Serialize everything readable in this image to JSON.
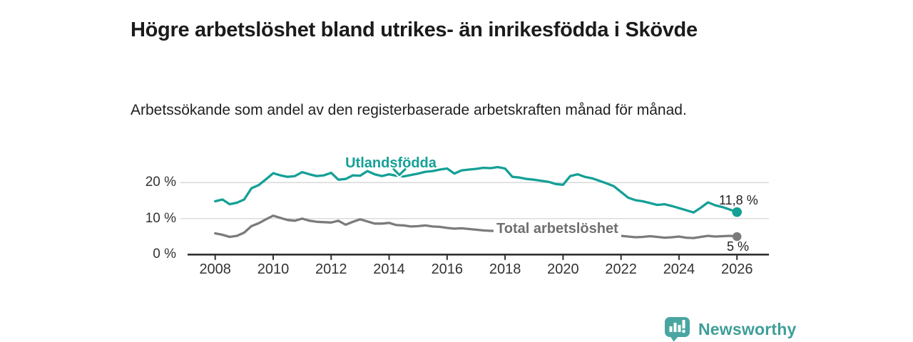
{
  "title": "Högre arbetslöshet bland utrikes- än inrikesfödda i Skövde",
  "subtitle": "Arbetssökande som andel av den registerbaserade arbetskraften månad för månad.",
  "branding": {
    "logo_text": "Newsworthy",
    "logo_icon": "bar-chart-speech-bubble-icon",
    "logo_color": "#3f9e99"
  },
  "colors": {
    "accent_teal": "#14a096",
    "line_gray": "#7b7b7b",
    "axis": "#303030",
    "gridline": "#d8d8d8",
    "text_dark": "#1b1b1b"
  },
  "chart_data": {
    "type": "line",
    "title": "Högre arbetslöshet bland utrikes- än inrikesfödda i Skövde",
    "xlabel": "",
    "ylabel": "",
    "x_unit": "year (monthly series)",
    "y_unit": "%",
    "x_start": 2008,
    "x_step": 0.25,
    "xlim": [
      2007.9,
      2027.1
    ],
    "ylim": [
      0,
      26
    ],
    "grid": "horizontal",
    "legend_position": "inline-labels",
    "x_ticks": [
      "2008",
      "2010",
      "2012",
      "2014",
      "2016",
      "2018",
      "2020",
      "2022",
      "2024",
      "2026"
    ],
    "y_ticks": [
      {
        "value": 0,
        "label": "0 %"
      },
      {
        "value": 10,
        "label": "10 %"
      },
      {
        "value": 20,
        "label": "20 %"
      }
    ],
    "series": [
      {
        "name": "Utlandsfödda",
        "color": "#14a096",
        "end_label": "11,8 %",
        "end_value": 11.8,
        "values": [
          14.8,
          15.3,
          14.0,
          14.4,
          15.3,
          18.4,
          19.3,
          20.9,
          22.6,
          22.0,
          21.6,
          21.8,
          22.9,
          22.3,
          21.8,
          22.0,
          22.7,
          20.8,
          21.0,
          22.0,
          21.9,
          23.2,
          22.3,
          21.8,
          22.3,
          21.9,
          21.7,
          22.1,
          22.5,
          23.0,
          23.2,
          23.6,
          23.9,
          22.5,
          23.4,
          23.6,
          23.8,
          24.1,
          24.0,
          24.3,
          23.9,
          21.6,
          21.4,
          21.0,
          20.8,
          20.5,
          20.2,
          19.6,
          19.4,
          21.8,
          22.3,
          21.6,
          21.2,
          20.5,
          19.8,
          19.0,
          17.4,
          15.8,
          15.1,
          14.8,
          14.3,
          13.8,
          14.0,
          13.5,
          12.9,
          12.3,
          11.7,
          13.0,
          14.5,
          13.7,
          13.2,
          12.5,
          11.8
        ]
      },
      {
        "name": "Total arbetslöshet",
        "color": "#7b7b7b",
        "end_label": "5 %",
        "end_value": 5.0,
        "values": [
          5.9,
          5.5,
          4.9,
          5.2,
          6.1,
          7.9,
          8.7,
          9.8,
          10.8,
          10.2,
          9.6,
          9.4,
          10.0,
          9.4,
          9.1,
          9.0,
          8.9,
          9.4,
          8.3,
          9.1,
          9.8,
          9.2,
          8.6,
          8.6,
          8.8,
          8.2,
          8.1,
          7.8,
          7.9,
          8.1,
          7.8,
          7.7,
          7.4,
          7.2,
          7.3,
          7.1,
          6.9,
          6.7,
          6.6,
          6.6,
          6.7,
          6.5,
          6.4,
          6.3,
          6.4,
          6.2,
          6.1,
          6.3,
          6.6,
          7.7,
          8.2,
          7.9,
          7.6,
          7.0,
          6.4,
          5.8,
          5.2,
          5.0,
          4.8,
          4.9,
          5.1,
          4.9,
          4.7,
          4.8,
          5.0,
          4.7,
          4.6,
          4.9,
          5.2,
          5.0,
          5.1,
          5.2,
          5.0
        ]
      }
    ]
  }
}
